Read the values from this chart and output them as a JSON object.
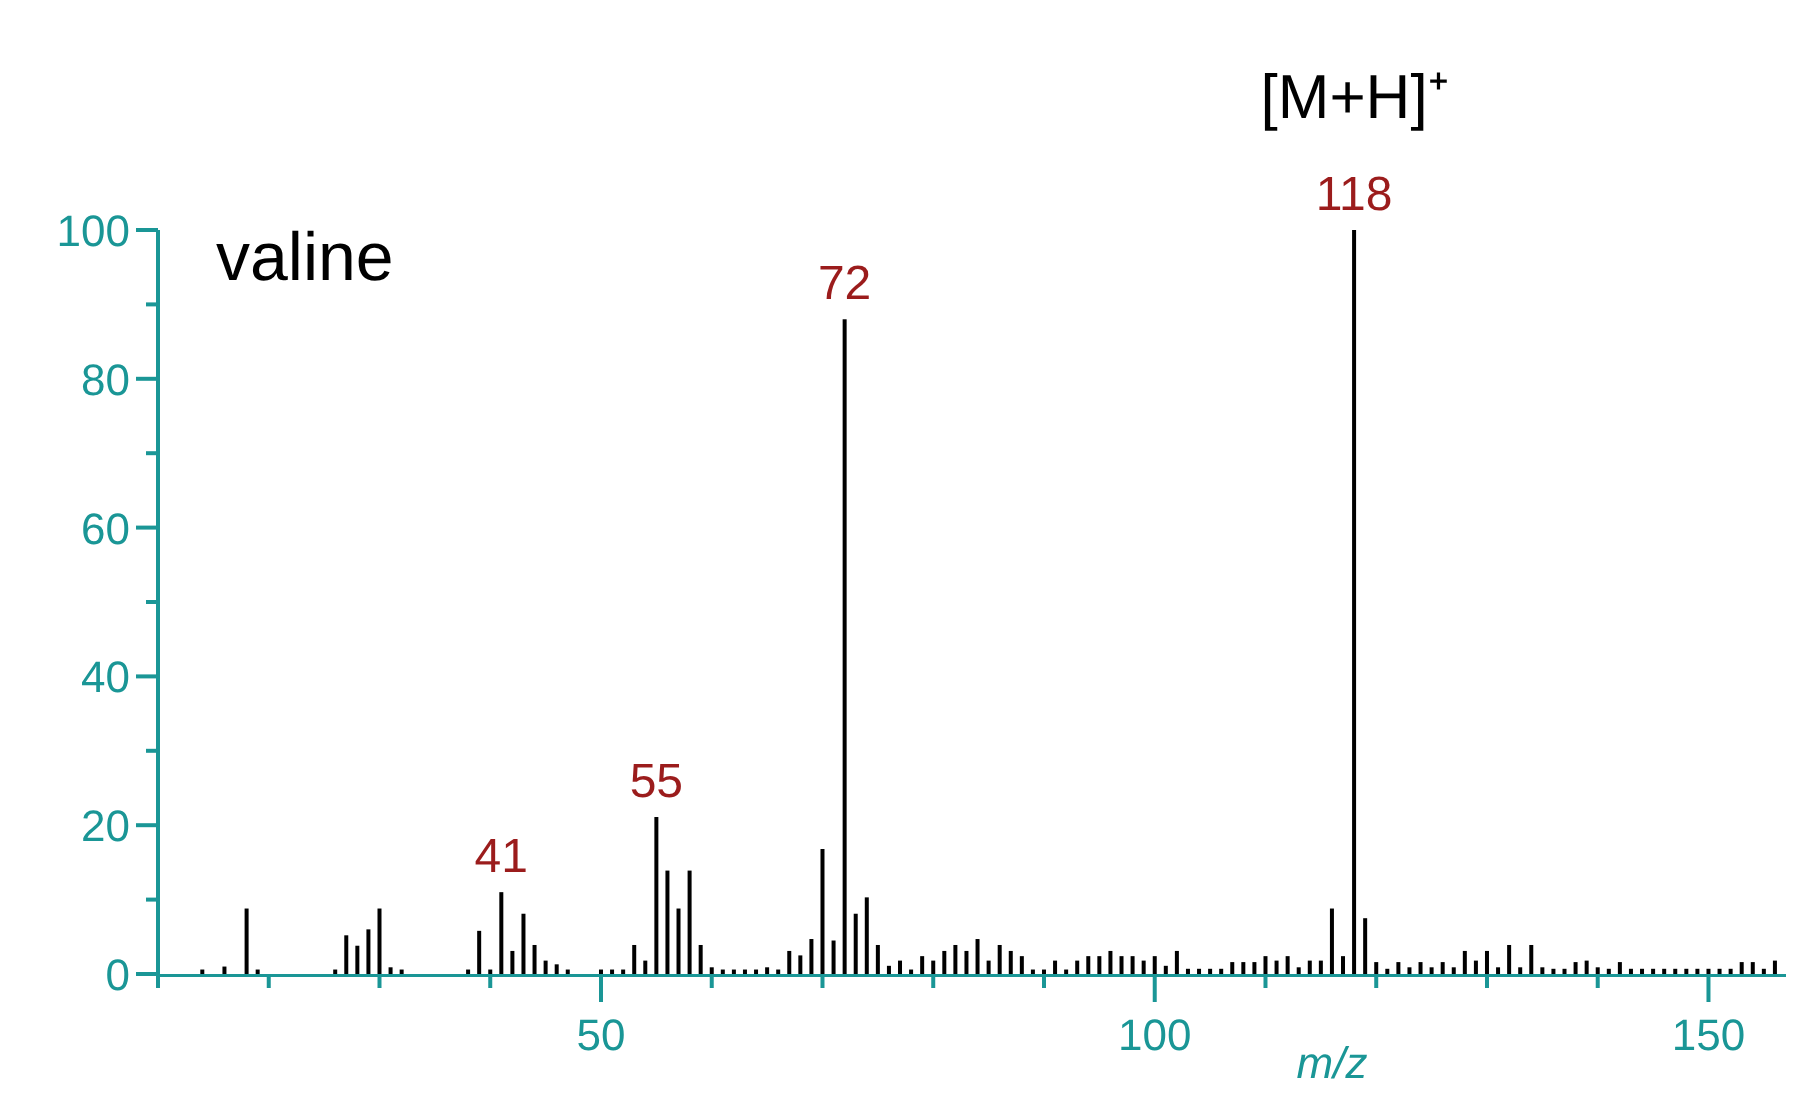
{
  "chart_data": {
    "type": "bar",
    "title": "valine",
    "xlabel": "m/z",
    "color": "#000000",
    "x": [
      14,
      16,
      18,
      19,
      26,
      27,
      28,
      29,
      30,
      31,
      32,
      38,
      39,
      40,
      41,
      42,
      43,
      44,
      45,
      46,
      47,
      50,
      51,
      52,
      53,
      54,
      55,
      56,
      57,
      58,
      59,
      60,
      61,
      62,
      63,
      64,
      65,
      66,
      67,
      68,
      69,
      70,
      71,
      72,
      73,
      74,
      75,
      76,
      77,
      78,
      79,
      80,
      81,
      82,
      83,
      84,
      85,
      86,
      87,
      88,
      89,
      90,
      91,
      92,
      93,
      94,
      95,
      96,
      97,
      98,
      99,
      100,
      101,
      102,
      103,
      104,
      105,
      106,
      107,
      108,
      109,
      110,
      111,
      112,
      113,
      114,
      115,
      116,
      117,
      118,
      119,
      120,
      121,
      122,
      123,
      124,
      125,
      126,
      127,
      128,
      129,
      130,
      131,
      132,
      133,
      134,
      135,
      136,
      137,
      138,
      139,
      140,
      141,
      142,
      143,
      144,
      145,
      146,
      147,
      148,
      149,
      150,
      151,
      152,
      153,
      154,
      155,
      156
    ],
    "values": [
      0.6,
      1.0,
      8.8,
      0.6,
      0.6,
      5.2,
      3.8,
      6.0,
      8.8,
      0.9,
      0.6,
      0.6,
      5.8,
      0.6,
      11,
      3.1,
      8.1,
      3.9,
      1.8,
      1.3,
      0.6,
      0.6,
      0.6,
      0.6,
      3.9,
      1.8,
      21.1,
      13.9,
      8.8,
      13.9,
      3.9,
      0.9,
      0.6,
      0.6,
      0.6,
      0.6,
      0.9,
      0.6,
      3.1,
      2.5,
      4.7,
      16.8,
      4.5,
      88,
      8.1,
      10.3,
      3.9,
      1.1,
      1.8,
      0.6,
      2.4,
      1.8,
      3.1,
      3.9,
      3.1,
      4.7,
      1.8,
      3.9,
      3.1,
      2.4,
      0.6,
      0.6,
      1.8,
      0.6,
      1.8,
      2.4,
      2.4,
      3.1,
      2.4,
      2.4,
      1.8,
      2.4,
      1.1,
      3.1,
      0.7,
      0.7,
      0.7,
      0.7,
      1.6,
      1.6,
      1.6,
      2.4,
      1.8,
      2.4,
      0.9,
      1.8,
      1.8,
      8.8,
      2.4,
      100,
      7.5,
      1.6,
      0.7,
      1.6,
      0.9,
      1.6,
      0.9,
      1.6,
      0.9,
      3.1,
      1.8,
      3.1,
      0.9,
      3.9,
      0.9,
      3.9,
      0.9,
      0.7,
      0.7,
      1.6,
      1.8,
      0.9,
      0.7,
      1.6,
      0.7,
      0.7,
      0.7,
      0.7,
      0.7,
      0.7,
      0.7,
      0.7,
      0.7,
      0.7,
      1.6,
      1.6,
      0.7,
      1.8
    ],
    "xlim": [
      10,
      157
    ],
    "ylim": [
      0,
      100
    ],
    "xticks": [
      {
        "value": 10,
        "label": null
      },
      {
        "value": 20,
        "label": null
      },
      {
        "value": 30,
        "label": null
      },
      {
        "value": 40,
        "label": null
      },
      50,
      {
        "value": 60,
        "label": null
      },
      {
        "value": 70,
        "label": null
      },
      {
        "value": 80,
        "label": null
      },
      {
        "value": 90,
        "label": null
      },
      100,
      {
        "value": 110,
        "label": null
      },
      {
        "value": 120,
        "label": null
      },
      {
        "value": 130,
        "label": null
      },
      {
        "value": 140,
        "label": null
      },
      150
    ],
    "yticks": [
      0,
      {
        "value": 10,
        "label": null
      },
      20,
      {
        "value": 30,
        "label": null
      },
      40,
      {
        "value": 50,
        "label": null
      },
      60,
      {
        "value": 70,
        "label": null
      },
      80,
      {
        "value": 90,
        "label": null
      },
      100
    ],
    "annotations": [
      {
        "text": "41",
        "x": 41,
        "y": 11
      },
      {
        "text": "55",
        "x": 55,
        "y": 21.1
      },
      {
        "text": "72",
        "x": 72,
        "y": 88
      },
      {
        "text": "118",
        "x": 118,
        "y": 100
      },
      {
        "text": "[M+H]⁺",
        "x": 118,
        "y": 100
      }
    ]
  }
}
